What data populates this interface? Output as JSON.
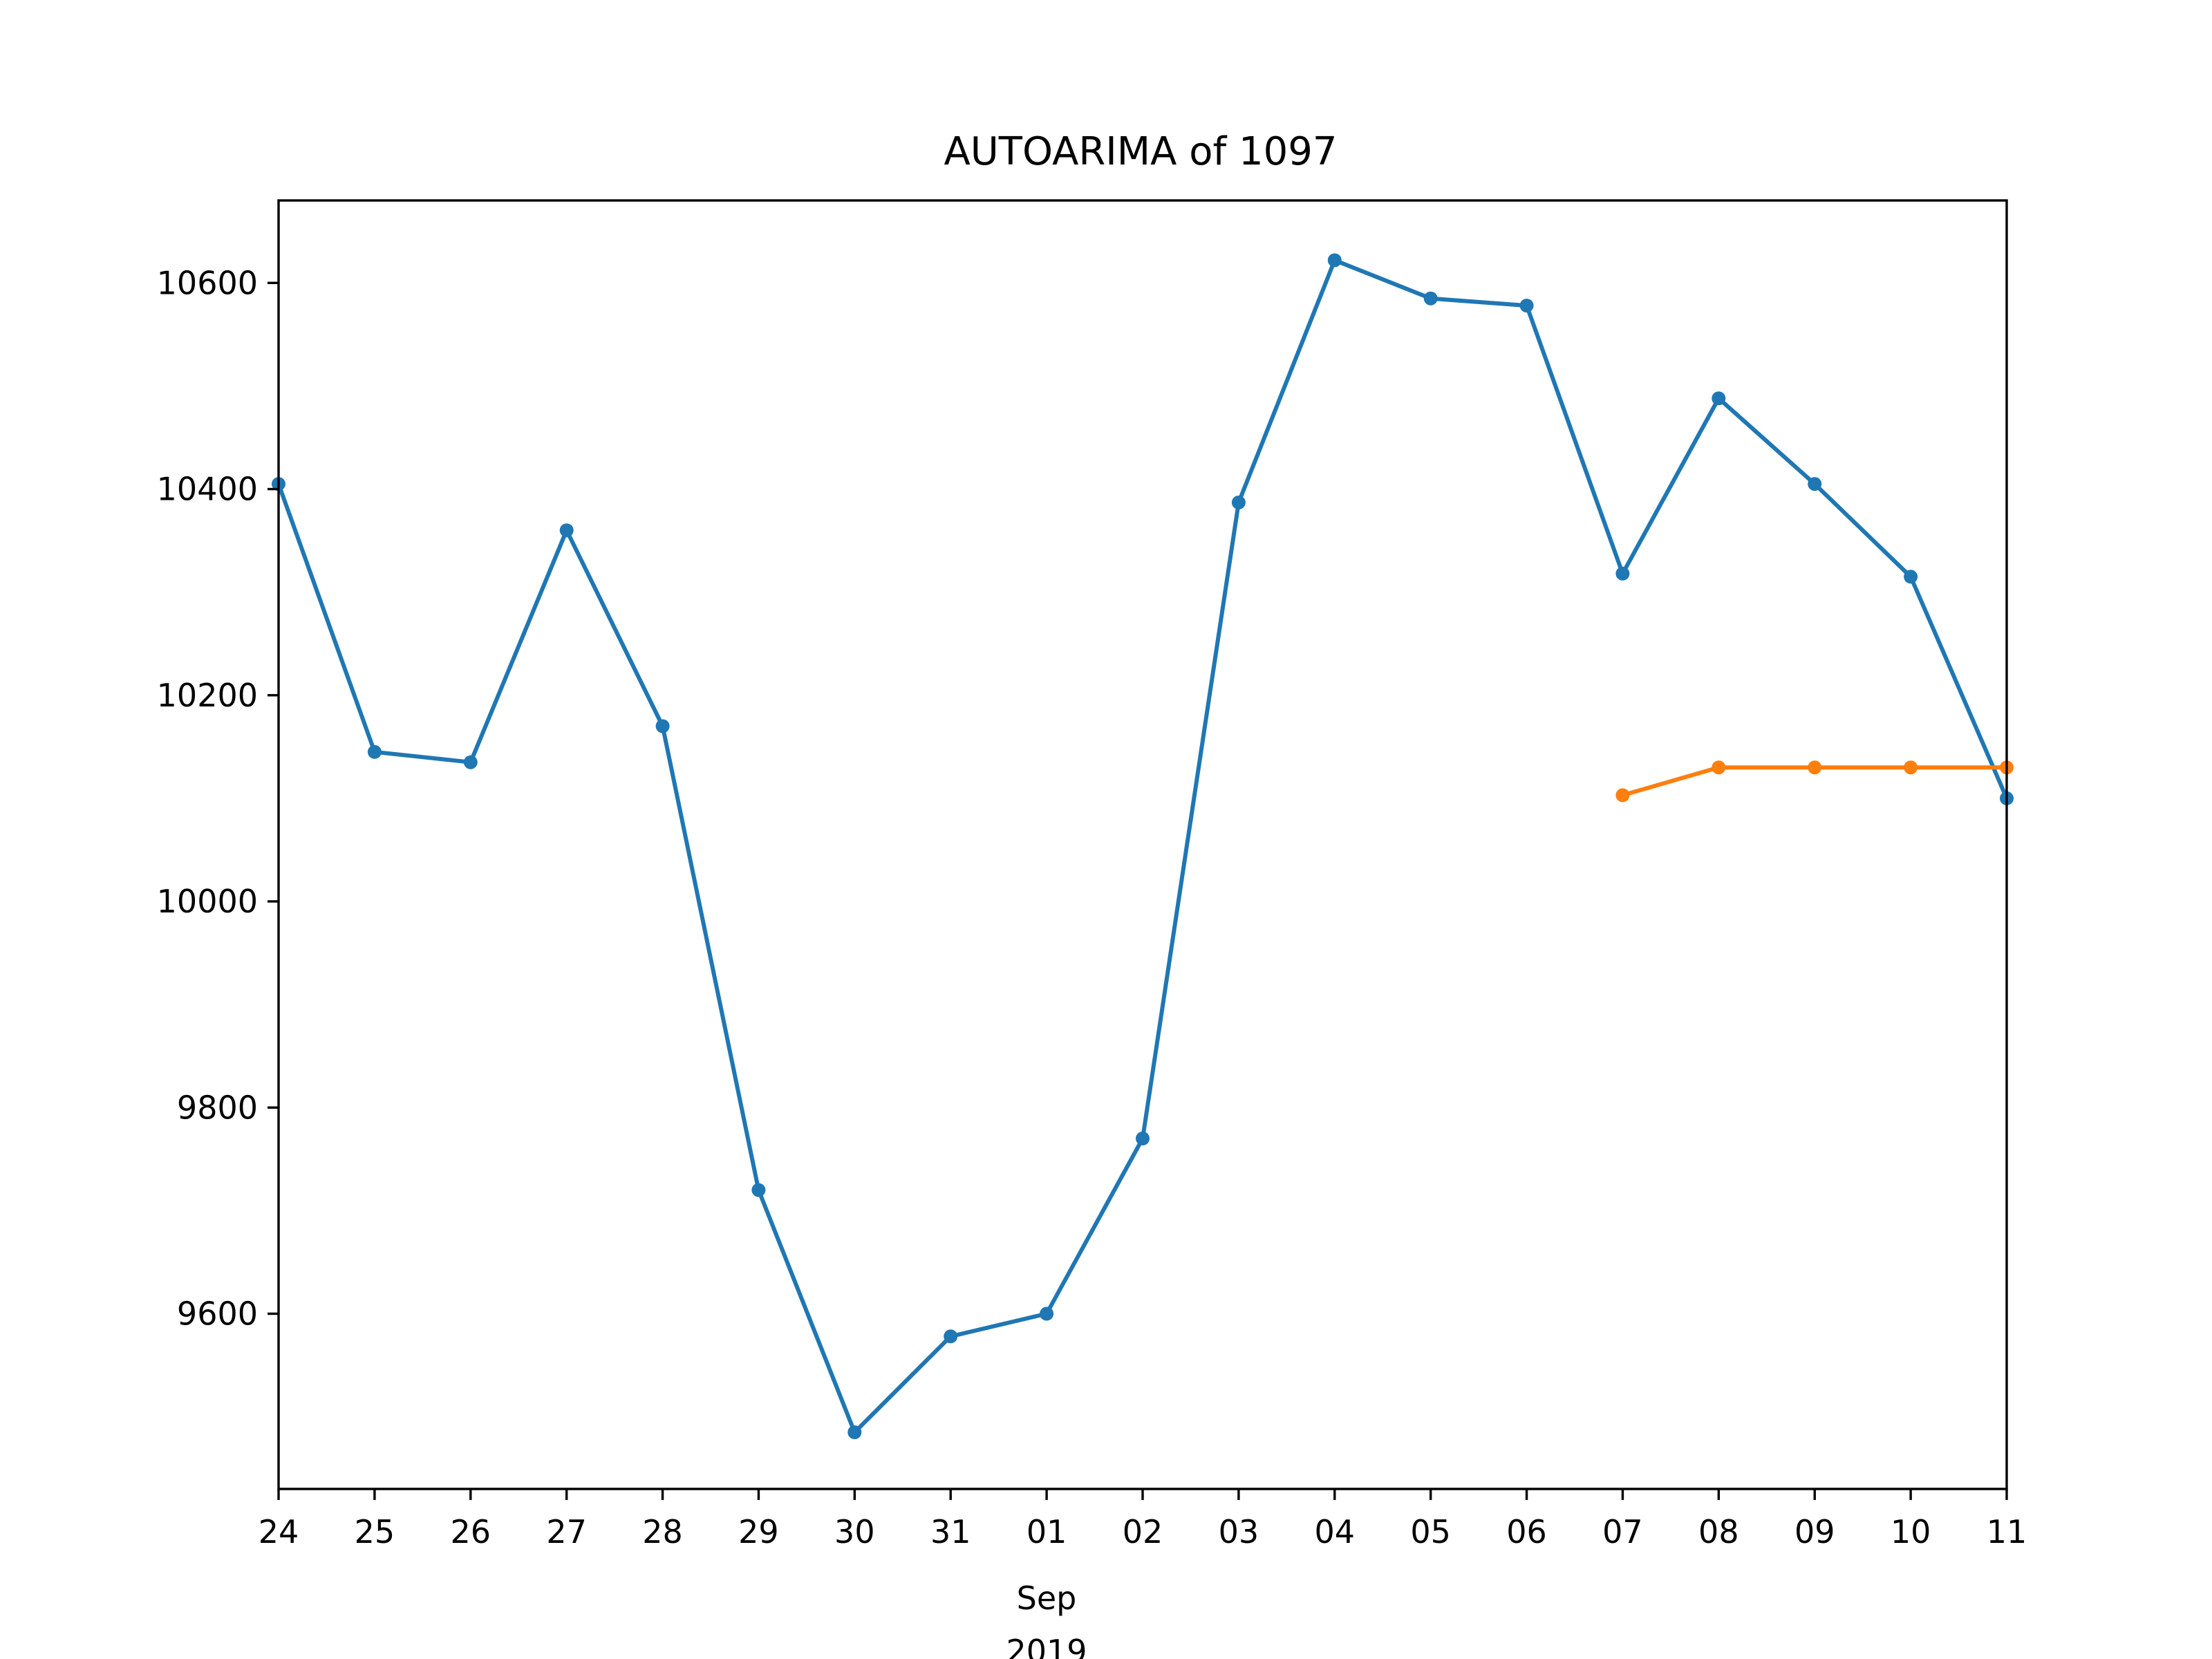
{
  "chart_data": {
    "type": "line",
    "title": "AUTOARIMA of 1097",
    "xlabel": "",
    "ylabel": "",
    "x_tick_labels": [
      "24",
      "25",
      "26",
      "27",
      "28",
      "29",
      "30",
      "31",
      "01",
      "02",
      "03",
      "04",
      "05",
      "06",
      "07",
      "08",
      "09",
      "10",
      "11"
    ],
    "x_sublabel_month": "Sep",
    "x_sublabel_year": "2019",
    "x_dates": [
      "2019-08-24",
      "2019-08-25",
      "2019-08-26",
      "2019-08-27",
      "2019-08-28",
      "2019-08-29",
      "2019-08-30",
      "2019-08-31",
      "2019-09-01",
      "2019-09-02",
      "2019-09-03",
      "2019-09-04",
      "2019-09-05",
      "2019-09-06",
      "2019-09-07",
      "2019-09-08",
      "2019-09-09",
      "2019-09-10",
      "2019-09-11"
    ],
    "ylim": [
      9430,
      10680
    ],
    "yticks": [
      9600,
      9800,
      10000,
      10200,
      10400,
      10600
    ],
    "grid": false,
    "series": [
      {
        "color": "#1f77b4",
        "x": [
          "2019-08-24",
          "2019-08-25",
          "2019-08-26",
          "2019-08-27",
          "2019-08-28",
          "2019-08-29",
          "2019-08-30",
          "2019-08-31",
          "2019-09-01",
          "2019-09-02",
          "2019-09-03",
          "2019-09-04",
          "2019-09-05",
          "2019-09-06",
          "2019-09-07",
          "2019-09-08",
          "2019-09-09",
          "2019-09-10",
          "2019-09-11"
        ],
        "values": [
          10405,
          10145,
          10135,
          10360,
          10170,
          9720,
          9485,
          9578,
          9600,
          9770,
          10387,
          10622,
          10585,
          10578,
          10318,
          10488,
          10405,
          10315,
          10100
        ]
      },
      {
        "color": "#ff7f0e",
        "x": [
          "2019-09-07",
          "2019-09-08",
          "2019-09-09",
          "2019-09-10",
          "2019-09-11"
        ],
        "values": [
          10103,
          10130,
          10130,
          10130,
          10130
        ]
      }
    ]
  }
}
